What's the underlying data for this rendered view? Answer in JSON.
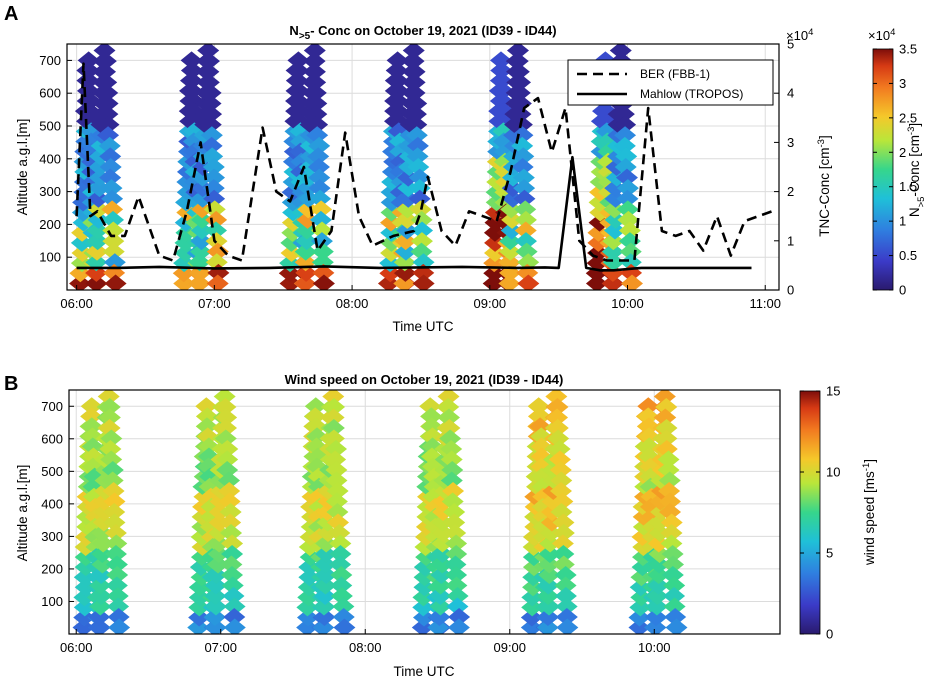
{
  "chart_data": [
    {
      "panel": "A",
      "type": "scatter",
      "title_parts": [
        "N",
        ">5",
        "- Conc on October 19, 2021 (ID39 - ID44)"
      ],
      "xlabel": "Time UTC",
      "xticks": [
        "06:00",
        "07:00",
        "08:00",
        "09:00",
        "10:00",
        "11:00"
      ],
      "xlim_hours": [
        5.93,
        11.1
      ],
      "ylabel": "Altitude a.g.l.[m]",
      "ylim": [
        0,
        750
      ],
      "yticks": [
        100,
        200,
        300,
        400,
        500,
        600,
        700
      ],
      "y2label_parts": [
        "TNC-Conc [cm",
        "-3",
        "]"
      ],
      "y2_exponent": "×10",
      "y2_exponent_power": "4",
      "y2lim": [
        0,
        5
      ],
      "y2ticks": [
        0,
        1,
        2,
        3,
        4,
        5
      ],
      "colorbar": {
        "label_parts": [
          "N",
          ">5",
          "-Conc [cm",
          "-3",
          "]"
        ],
        "exponent": "×10",
        "exponent_power": "4",
        "range": [
          0,
          3.5
        ],
        "ticks": [
          0,
          0.5,
          1,
          1.5,
          2,
          2.5,
          3,
          3.5
        ]
      },
      "legend": {
        "position": "top-right",
        "entries": [
          "BER (FBB-1)",
          "Mahlow (TROPOS)"
        ]
      },
      "series": [
        {
          "name": "BER (FBB-1)",
          "style": "dashed",
          "x": [
            6.0,
            6.05,
            6.1,
            6.15,
            6.25,
            6.35,
            6.45,
            6.6,
            6.7,
            6.8,
            6.9,
            7.0,
            7.1,
            7.2,
            7.35,
            7.45,
            7.55,
            7.65,
            7.75,
            7.85,
            7.95,
            8.05,
            8.15,
            8.3,
            8.45,
            8.5,
            8.55,
            8.65,
            8.75,
            8.85,
            8.95,
            9.05,
            9.15,
            9.25,
            9.35,
            9.45,
            9.55,
            9.65,
            9.75,
            9.85,
            9.95,
            10.05,
            10.15,
            10.25,
            10.35,
            10.45,
            10.55,
            10.65,
            10.75,
            10.85,
            10.95,
            11.05
          ],
          "values": [
            1.5,
            4.6,
            1.5,
            1.6,
            1.1,
            1.1,
            1.9,
            0.7,
            0.6,
            1.6,
            3.0,
            1.0,
            0.7,
            0.6,
            3.3,
            2.0,
            1.8,
            2.5,
            0.8,
            1.2,
            3.2,
            1.5,
            0.9,
            1.1,
            1.2,
            1.6,
            2.3,
            1.2,
            0.9,
            1.6,
            1.5,
            1.4,
            2.4,
            3.7,
            3.9,
            2.8,
            3.7,
            1.0,
            0.7,
            0.6,
            0.6,
            0.6,
            3.7,
            1.2,
            1.1,
            1.2,
            0.8,
            1.5,
            0.7,
            1.4,
            1.5,
            1.6
          ]
        },
        {
          "name": "Mahlow (TROPOS)",
          "style": "solid",
          "x": [
            6.0,
            6.1,
            6.3,
            6.6,
            7.0,
            7.4,
            7.8,
            8.2,
            8.5,
            8.8,
            9.0,
            9.2,
            9.4,
            9.5,
            9.6,
            9.7,
            9.8,
            9.9,
            10.1,
            10.3,
            10.5,
            10.7,
            10.9
          ],
          "values": [
            0.45,
            0.45,
            0.45,
            0.47,
            0.44,
            0.45,
            0.48,
            0.45,
            0.46,
            0.47,
            0.46,
            0.45,
            0.46,
            0.45,
            2.7,
            0.45,
            0.4,
            0.4,
            0.45,
            0.45,
            0.45,
            0.45,
            0.45
          ]
        }
      ]
    },
    {
      "panel": "B",
      "type": "scatter",
      "title": "Wind speed on October 19, 2021 (ID39 - ID44)",
      "xlabel": "Time UTC",
      "xticks": [
        "06:00",
        "07:00",
        "08:00",
        "09:00",
        "10:00"
      ],
      "xlim_hours": [
        5.95,
        10.87
      ],
      "ylabel": "Altitude a.g.l.[m]",
      "ylim": [
        0,
        750
      ],
      "yticks": [
        100,
        200,
        300,
        400,
        500,
        600,
        700
      ],
      "colorbar": {
        "label_parts": [
          "wind speed [ms",
          "-1",
          "]"
        ],
        "range": [
          0,
          15
        ],
        "ticks": [
          0,
          5,
          10,
          15
        ]
      }
    }
  ]
}
